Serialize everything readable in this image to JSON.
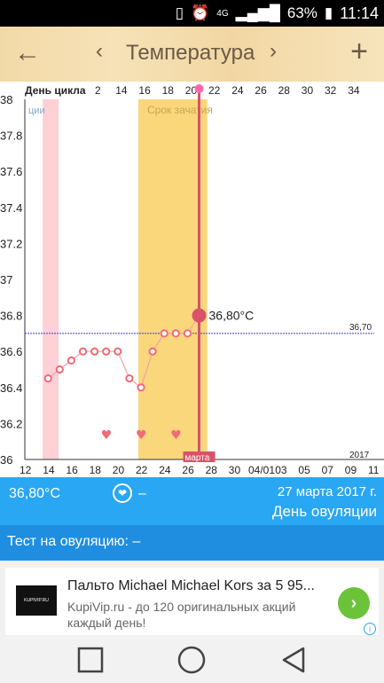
{
  "status_bar": {
    "network": "4G",
    "battery": "63%",
    "time": "11:14"
  },
  "header": {
    "title": "Температура"
  },
  "chart": {
    "cycle_day_label": "День цикла",
    "fragment_label": "ции",
    "conception_label": "Срок зачатия",
    "month_label": "марта",
    "year_label": "2017",
    "current_value_label": "36,80°C",
    "coverline_label": "36,70"
  },
  "chart_data": {
    "type": "line",
    "ylim": [
      36,
      38
    ],
    "y_ticks": [
      "38",
      "37.8",
      "37.6",
      "37.4",
      "37.2",
      "37",
      "36.8",
      "36.6",
      "36.4",
      "36.2",
      "36"
    ],
    "cycle_day_ticks": [
      "2",
      "14",
      "16",
      "18",
      "20",
      "22",
      "24",
      "26",
      "28",
      "30",
      "32",
      "34"
    ],
    "date_ticks": [
      "12",
      "14",
      "16",
      "18",
      "20",
      "22",
      "24",
      "26",
      "28",
      "30",
      "04/01",
      "03",
      "05",
      "07",
      "09",
      "11"
    ],
    "x_start_date_day": 12,
    "series": [
      {
        "values": [
          {
            "x": 14,
            "y": 36.45
          },
          {
            "x": 15,
            "y": 36.5
          },
          {
            "x": 16,
            "y": 36.55
          },
          {
            "x": 17,
            "y": 36.6
          },
          {
            "x": 18,
            "y": 36.6
          },
          {
            "x": 19,
            "y": 36.6
          },
          {
            "x": 20,
            "y": 36.6
          },
          {
            "x": 21,
            "y": 36.45
          },
          {
            "x": 22,
            "y": 36.4
          },
          {
            "x": 23,
            "y": 36.6
          },
          {
            "x": 24,
            "y": 36.7
          },
          {
            "x": 25,
            "y": 36.7
          },
          {
            "x": 26,
            "y": 36.7
          },
          {
            "x": 27,
            "y": 36.8
          }
        ]
      }
    ],
    "coverline": 36.7,
    "menstruation_range": [
      13,
      14
    ],
    "fertile_window": [
      22,
      27.7
    ],
    "ovulation_day": 27,
    "hearts_x": [
      19,
      22,
      25
    ],
    "grid": false
  },
  "info": {
    "temperature": "36,80°C",
    "dash": "–",
    "date": "27 марта 2017 г.",
    "event": "День овуляции"
  },
  "test": {
    "label": "Тест на овуляцию: –"
  },
  "ad": {
    "logo_text": "KUPIVIP.RU",
    "title": "Пальто Michael Michael Kors за 5 95...",
    "text": "KupiVip.ru - до 120 оригинальных акций каждый день!"
  },
  "colors": {
    "header_bg": "#f3d9a8",
    "info_bg": "#29a7f2",
    "test_bg": "#1f8ee0",
    "point": "#f06a78",
    "ovulation": "#d8536a",
    "fertile": "#f9d77a",
    "menstruation": "#ffd0d6",
    "coverline": "#3b3bd6"
  }
}
